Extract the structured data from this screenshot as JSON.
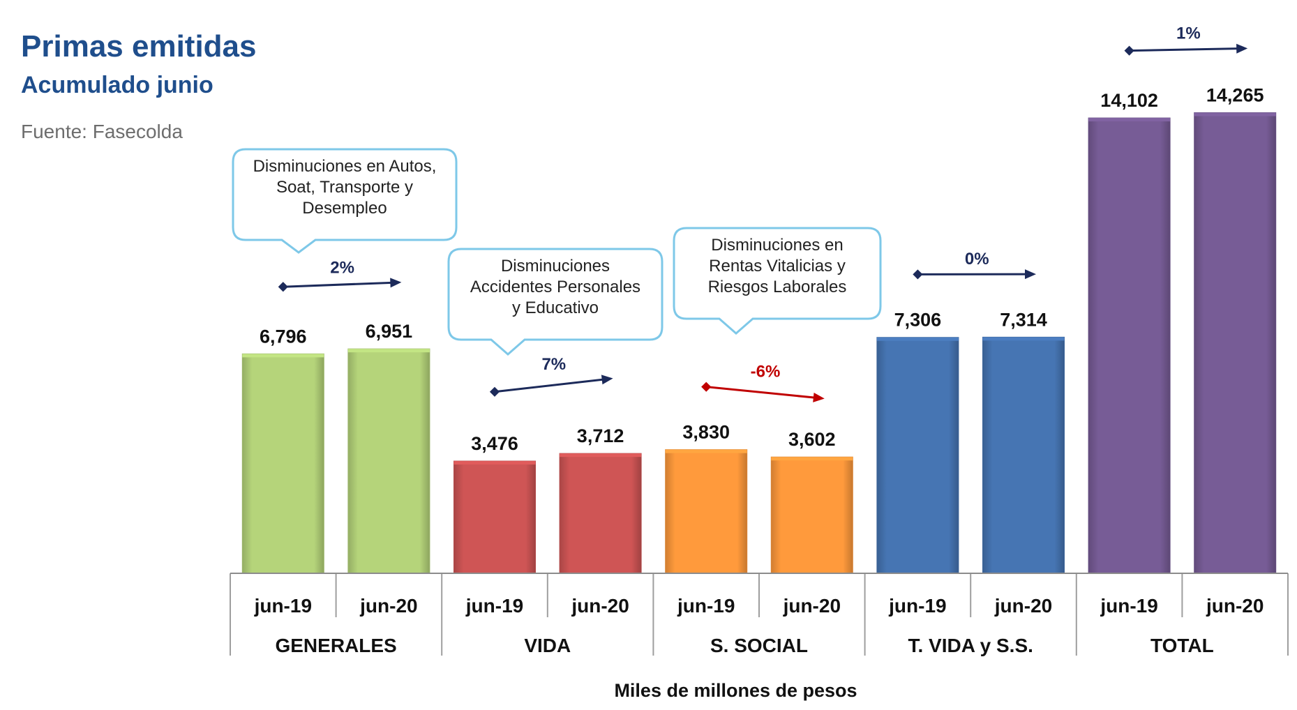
{
  "header": {
    "title": "Primas emitidas",
    "subtitle": "Acumulado junio",
    "source": "Fuente: Fasecolda"
  },
  "chart_data": {
    "type": "bar",
    "xlabel": "Miles de millones de pesos",
    "ylabel": "",
    "ylim": [
      0,
      16000
    ],
    "grid": false,
    "groups": [
      {
        "name": "GENERALES",
        "categories": [
          "jun-19",
          "jun-20"
        ],
        "values": [
          6796,
          6951
        ],
        "labels": [
          "6,796",
          "6,951"
        ],
        "change": "2%",
        "color": "#b5d47a",
        "change_color": "#1c2a5a"
      },
      {
        "name": "VIDA",
        "categories": [
          "jun-19",
          "jun-20"
        ],
        "values": [
          3476,
          3712
        ],
        "labels": [
          "3,476",
          "3,712"
        ],
        "change": "7%",
        "color": "#cf5555",
        "change_color": "#1c2a5a"
      },
      {
        "name": "S. SOCIAL",
        "categories": [
          "jun-19",
          "jun-20"
        ],
        "values": [
          3830,
          3602
        ],
        "labels": [
          "3,830",
          "3,602"
        ],
        "change": "-6%",
        "color": "#ff9a3c",
        "change_color": "#c00000"
      },
      {
        "name": "T. VIDA y S.S.",
        "categories": [
          "jun-19",
          "jun-20"
        ],
        "values": [
          7306,
          7314
        ],
        "labels": [
          "7,306",
          "7,314"
        ],
        "change": "0%",
        "color": "#4675b3",
        "change_color": "#1c2a5a"
      },
      {
        "name": "TOTAL",
        "categories": [
          "jun-19",
          "jun-20"
        ],
        "values": [
          14102,
          14265
        ],
        "labels": [
          "14,102",
          "14,265"
        ],
        "change": "1%",
        "color": "#775c96",
        "change_color": "#1c2a5a"
      }
    ]
  },
  "annotations": [
    {
      "lines": [
        "Disminuciones en Autos,",
        "Soat, Transporte y",
        "Desempleo"
      ]
    },
    {
      "lines": [
        "Disminuciones",
        "Accidentes Personales",
        "y Educativo"
      ]
    },
    {
      "lines": [
        "Disminuciones en",
        "Rentas Vitalicias y",
        "Riesgos Laborales"
      ]
    }
  ]
}
